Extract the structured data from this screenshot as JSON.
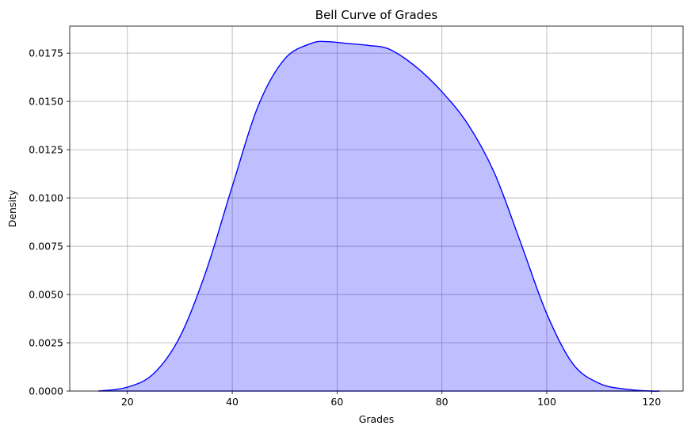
{
  "chart_data": {
    "type": "area",
    "title": "Bell Curve of Grades",
    "xlabel": "Grades",
    "ylabel": "Density",
    "xlim": [
      9,
      126
    ],
    "ylim": [
      0,
      0.0189
    ],
    "xticks": [
      20,
      40,
      60,
      80,
      100,
      120
    ],
    "xtick_labels": [
      "20",
      "40",
      "60",
      "80",
      "100",
      "120"
    ],
    "yticks": [
      0.0,
      0.0025,
      0.005,
      0.0075,
      0.01,
      0.0125,
      0.015,
      0.0175
    ],
    "ytick_labels": [
      "0.0000",
      "0.0025",
      "0.0050",
      "0.0075",
      "0.0100",
      "0.0125",
      "0.0150",
      "0.0175"
    ],
    "grid": true,
    "line_color": "#0000ff",
    "fill_color": "#0000ff",
    "fill_opacity": 0.25,
    "grid_color": "#b0b0b0",
    "series": [
      {
        "x": [
          14.5,
          20,
          25,
          30,
          35,
          40,
          45,
          50,
          55,
          58,
          62,
          66,
          70,
          75,
          80,
          85,
          90,
          95,
          100,
          105,
          110,
          115,
          120,
          121.5
        ],
        "y": [
          0.0,
          0.0002,
          0.0009,
          0.0028,
          0.0062,
          0.0106,
          0.0148,
          0.0172,
          0.018,
          0.0181,
          0.018,
          0.0179,
          0.0177,
          0.0168,
          0.0155,
          0.0138,
          0.0113,
          0.0077,
          0.004,
          0.0014,
          0.0004,
          0.0001,
          0.0,
          0.0
        ]
      }
    ]
  }
}
